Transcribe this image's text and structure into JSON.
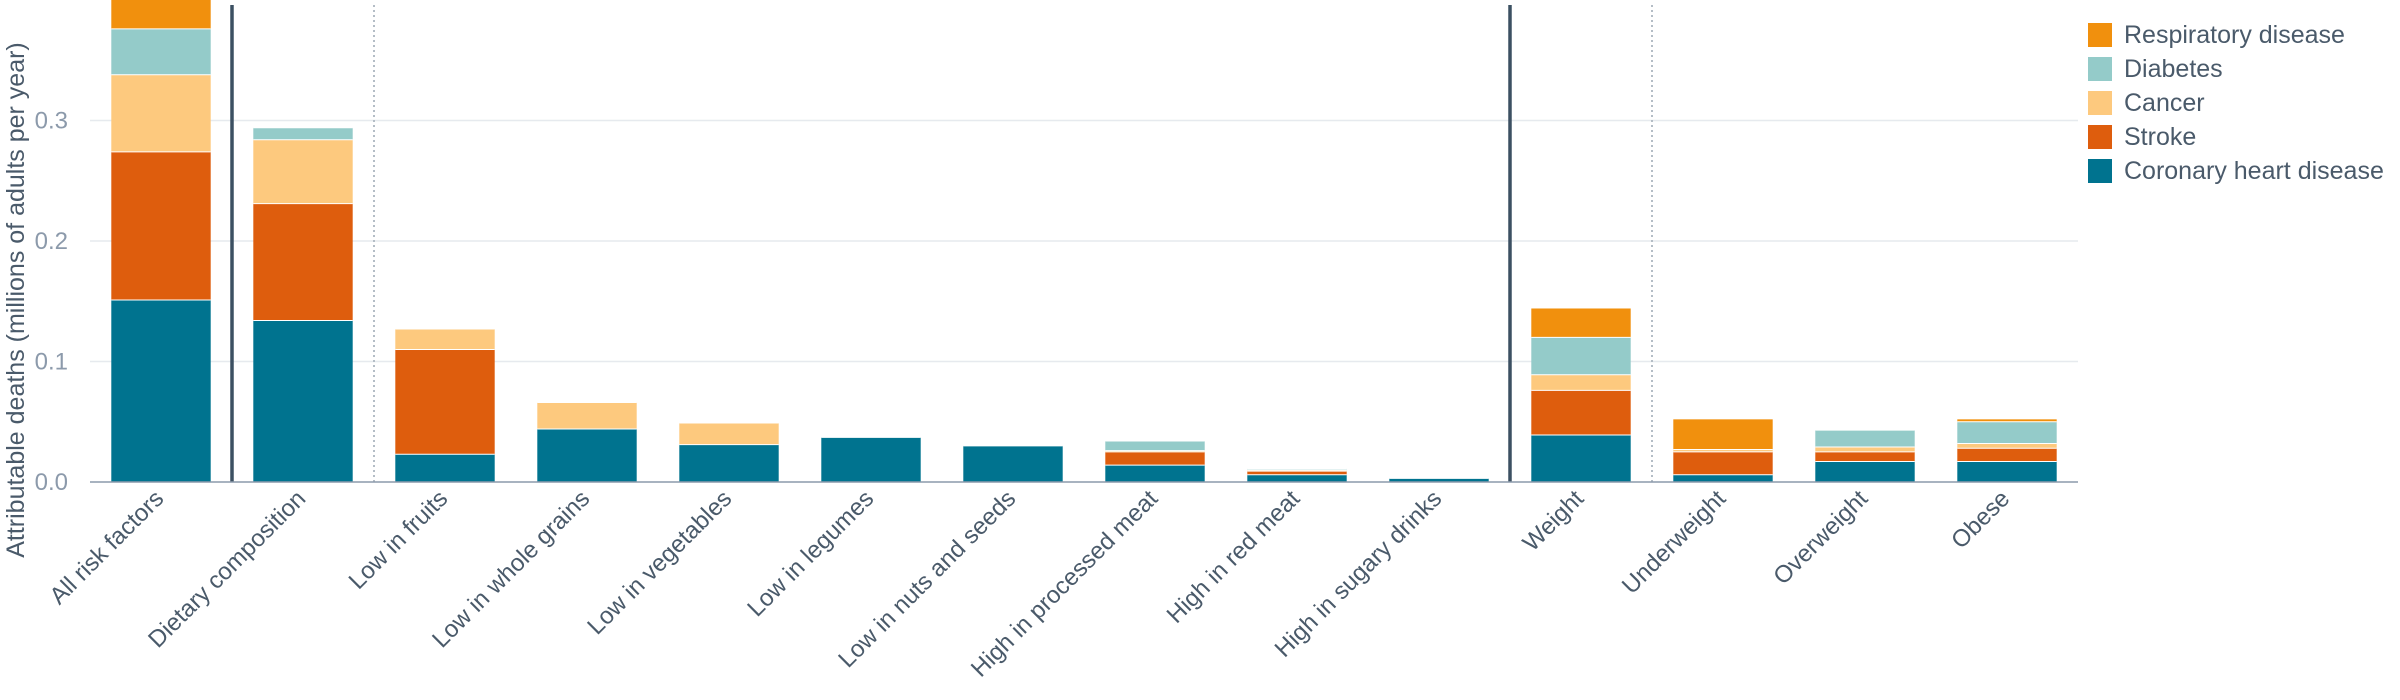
{
  "chart_data": {
    "type": "bar",
    "stacked": true,
    "ylabel": "Attributable deaths (millions of adults per year)",
    "xlabel": "",
    "ylim": [
      0,
      0.4
    ],
    "yticks": [
      0.0,
      0.1,
      0.2,
      0.3
    ],
    "ytick_labels": [
      "0.0",
      "0.1",
      "0.2",
      "0.3"
    ],
    "grid": true,
    "legend_position": "right",
    "categories": [
      "All risk factors",
      "Dietary composition",
      "Low in fruits",
      "Low in whole grains",
      "Low in vegetables",
      "Low in legumes",
      "Low in nuts and seeds",
      "High in processed meat",
      "High in red meat",
      "High in sugary drinks",
      "Weight",
      "Underweight",
      "Overweight",
      "Obese"
    ],
    "separators": [
      {
        "after_index": 0,
        "style": "solid"
      },
      {
        "after_index": 1,
        "style": "dotted"
      },
      {
        "after_index": 9,
        "style": "solid"
      },
      {
        "after_index": 10,
        "style": "dotted"
      }
    ],
    "series": [
      {
        "name": "Coronary heart disease",
        "color": "#00738f",
        "values": [
          0.151,
          0.134,
          0.023,
          0.044,
          0.031,
          0.037,
          0.03,
          0.014,
          0.006,
          0.003,
          0.039,
          0.006,
          0.017,
          0.017
        ]
      },
      {
        "name": "Stroke",
        "color": "#de5d0d",
        "values": [
          0.123,
          0.097,
          0.087,
          0.0,
          0.0,
          0.0,
          0.0,
          0.011,
          0.003,
          0.0,
          0.037,
          0.019,
          0.008,
          0.011
        ]
      },
      {
        "name": "Cancer",
        "color": "#fdc97e",
        "values": [
          0.064,
          0.053,
          0.017,
          0.022,
          0.018,
          0.0,
          0.0,
          0.001,
          0.001,
          0.0,
          0.013,
          0.002,
          0.004,
          0.004
        ]
      },
      {
        "name": "Diabetes",
        "color": "#94cbc9",
        "values": [
          0.038,
          0.01,
          0.0,
          0.0,
          0.0,
          0.0,
          0.0,
          0.008,
          0.001,
          0.0,
          0.031,
          0.0,
          0.014,
          0.018
        ]
      },
      {
        "name": "Respiratory disease",
        "color": "#f1900d",
        "values": [
          0.024,
          0.0,
          0.0,
          0.0,
          0.0,
          0.0,
          0.0,
          0.0,
          0.0,
          0.0,
          0.024,
          0.025,
          0.0,
          0.002
        ]
      }
    ],
    "legend_order": [
      "Respiratory disease",
      "Diabetes",
      "Cancer",
      "Stroke",
      "Coronary heart disease"
    ]
  },
  "colors": {
    "axis": "#8c9aab",
    "grid": "#e6eaee",
    "separator_solid": "#3c5062",
    "separator_dotted": "#b4bdc6"
  }
}
